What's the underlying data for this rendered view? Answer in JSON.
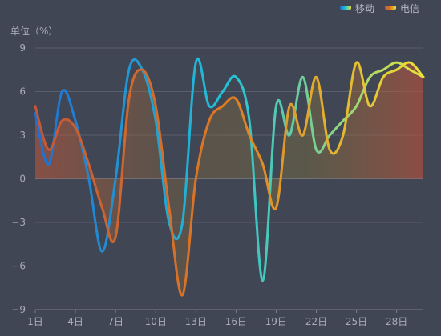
{
  "chart_data": {
    "type": "line",
    "unit_label": "单位（%）",
    "legend_position": "top-right",
    "x": [
      "1日",
      "2日",
      "3日",
      "4日",
      "5日",
      "6日",
      "7日",
      "8日",
      "9日",
      "10日",
      "11日",
      "12日",
      "13日",
      "14日",
      "15日",
      "16日",
      "17日",
      "18日",
      "19日",
      "20日",
      "21日",
      "22日",
      "23日",
      "24日",
      "25日",
      "26日",
      "27日",
      "28日",
      "29日",
      "30日"
    ],
    "xtick_labels": [
      "1日",
      "4日",
      "7日",
      "10日",
      "13日",
      "16日",
      "19日",
      "22日",
      "25日",
      "28日"
    ],
    "ylim": [
      -9,
      9
    ],
    "yticks": [
      -9,
      -6,
      -3,
      0,
      3,
      6,
      9
    ],
    "grid": true,
    "series": [
      {
        "name": "移动",
        "gradient": [
          "#1f6fd0",
          "#22c3d8",
          "#e6e23a"
        ],
        "values": [
          4.5,
          1,
          6,
          4,
          0,
          -5,
          0,
          7.5,
          7.5,
          4,
          -3,
          -3,
          8,
          5,
          6,
          7,
          4,
          -7,
          5,
          3,
          7,
          2,
          3,
          4,
          5,
          7,
          7.5,
          8,
          7.5,
          7
        ]
      },
      {
        "name": "电信",
        "gradient": [
          "#c0573a",
          "#e07b22",
          "#e8e33a"
        ],
        "values": [
          5,
          2,
          4,
          3.5,
          1,
          -2,
          -4,
          5.5,
          7.5,
          5,
          -2,
          -8,
          0,
          4,
          5,
          5.5,
          3,
          1,
          -2,
          5,
          3,
          7,
          2,
          3,
          8,
          5,
          7,
          7.5,
          8,
          7
        ]
      }
    ]
  }
}
